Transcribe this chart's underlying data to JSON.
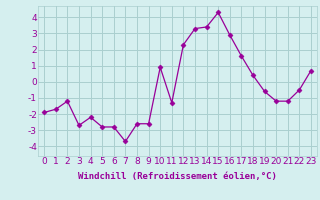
{
  "x": [
    0,
    1,
    2,
    3,
    4,
    5,
    6,
    7,
    8,
    9,
    10,
    11,
    12,
    13,
    14,
    15,
    16,
    17,
    18,
    19,
    20,
    21,
    22,
    23
  ],
  "y": [
    -1.9,
    -1.7,
    -1.2,
    -2.7,
    -2.2,
    -2.8,
    -2.8,
    -3.7,
    -2.6,
    -2.6,
    0.9,
    -1.3,
    2.3,
    3.3,
    3.4,
    4.3,
    2.9,
    1.6,
    0.4,
    -0.6,
    -1.2,
    -1.2,
    -0.5,
    0.7
  ],
  "line_color": "#990099",
  "marker": "D",
  "markersize": 2.5,
  "linewidth": 0.9,
  "bg_color": "#d5efef",
  "grid_color": "#aacfcf",
  "xlabel": "Windchill (Refroidissement éolien,°C)",
  "xlabel_fontsize": 6.5,
  "ylabel_ticks": [
    -4,
    -3,
    -2,
    -1,
    0,
    1,
    2,
    3,
    4
  ],
  "xlim": [
    -0.5,
    23.5
  ],
  "ylim": [
    -4.6,
    4.7
  ],
  "tick_fontsize": 6.5,
  "axis_label_color": "#990099"
}
